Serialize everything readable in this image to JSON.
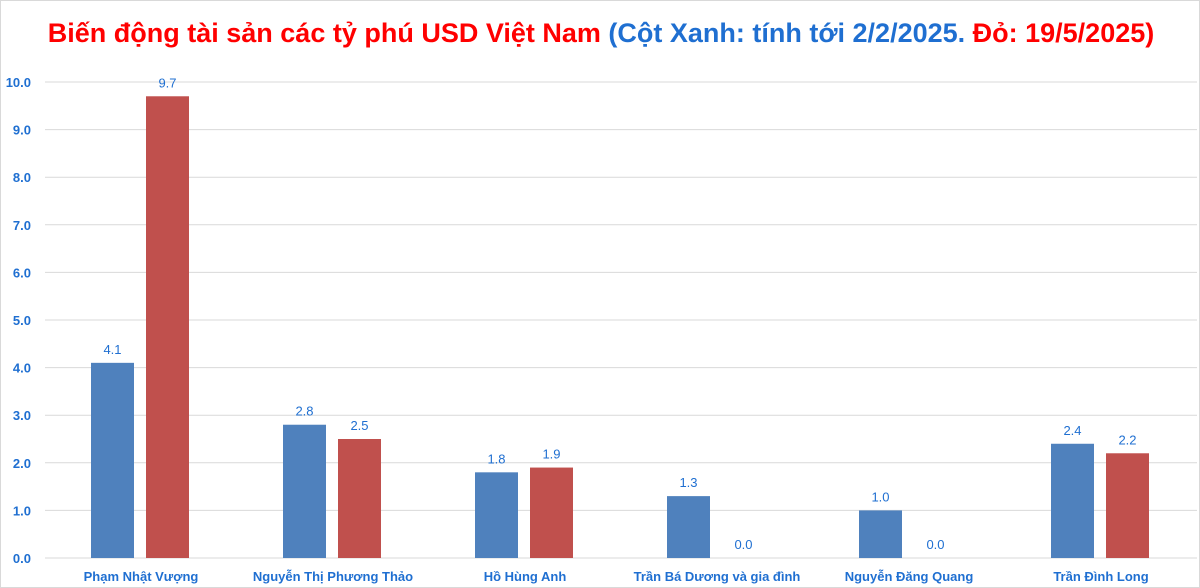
{
  "chart_data": {
    "type": "bar",
    "title_part1": "Biến động tài sản các tỷ phú USD Việt Nam ",
    "title_part2": "(Cột Xanh: tính tới 2/2/2025.",
    "title_part3": " Đỏ: 19/5/2025)",
    "categories": [
      "Phạm Nhật Vượng",
      "Nguyễn Thị Phương Thảo",
      "Hồ Hùng Anh",
      "Trần Bá Dương và gia đình",
      "Nguyễn Đăng Quang",
      "Trần Đình Long"
    ],
    "series": [
      {
        "name": "2/2/2025",
        "color": "#4f81bd",
        "values": [
          4.1,
          2.8,
          1.8,
          1.3,
          1.0,
          2.4
        ]
      },
      {
        "name": "19/5/2025",
        "color": "#c0504d",
        "values": [
          9.7,
          2.5,
          1.9,
          0.0,
          0.0,
          2.2
        ]
      }
    ],
    "ylim": [
      0,
      10
    ],
    "yticks": [
      "0.0",
      "1.0",
      "2.0",
      "3.0",
      "4.0",
      "5.0",
      "6.0",
      "7.0",
      "8.0",
      "9.0",
      "10.0"
    ],
    "grid": true,
    "xlabel": "",
    "ylabel": ""
  }
}
